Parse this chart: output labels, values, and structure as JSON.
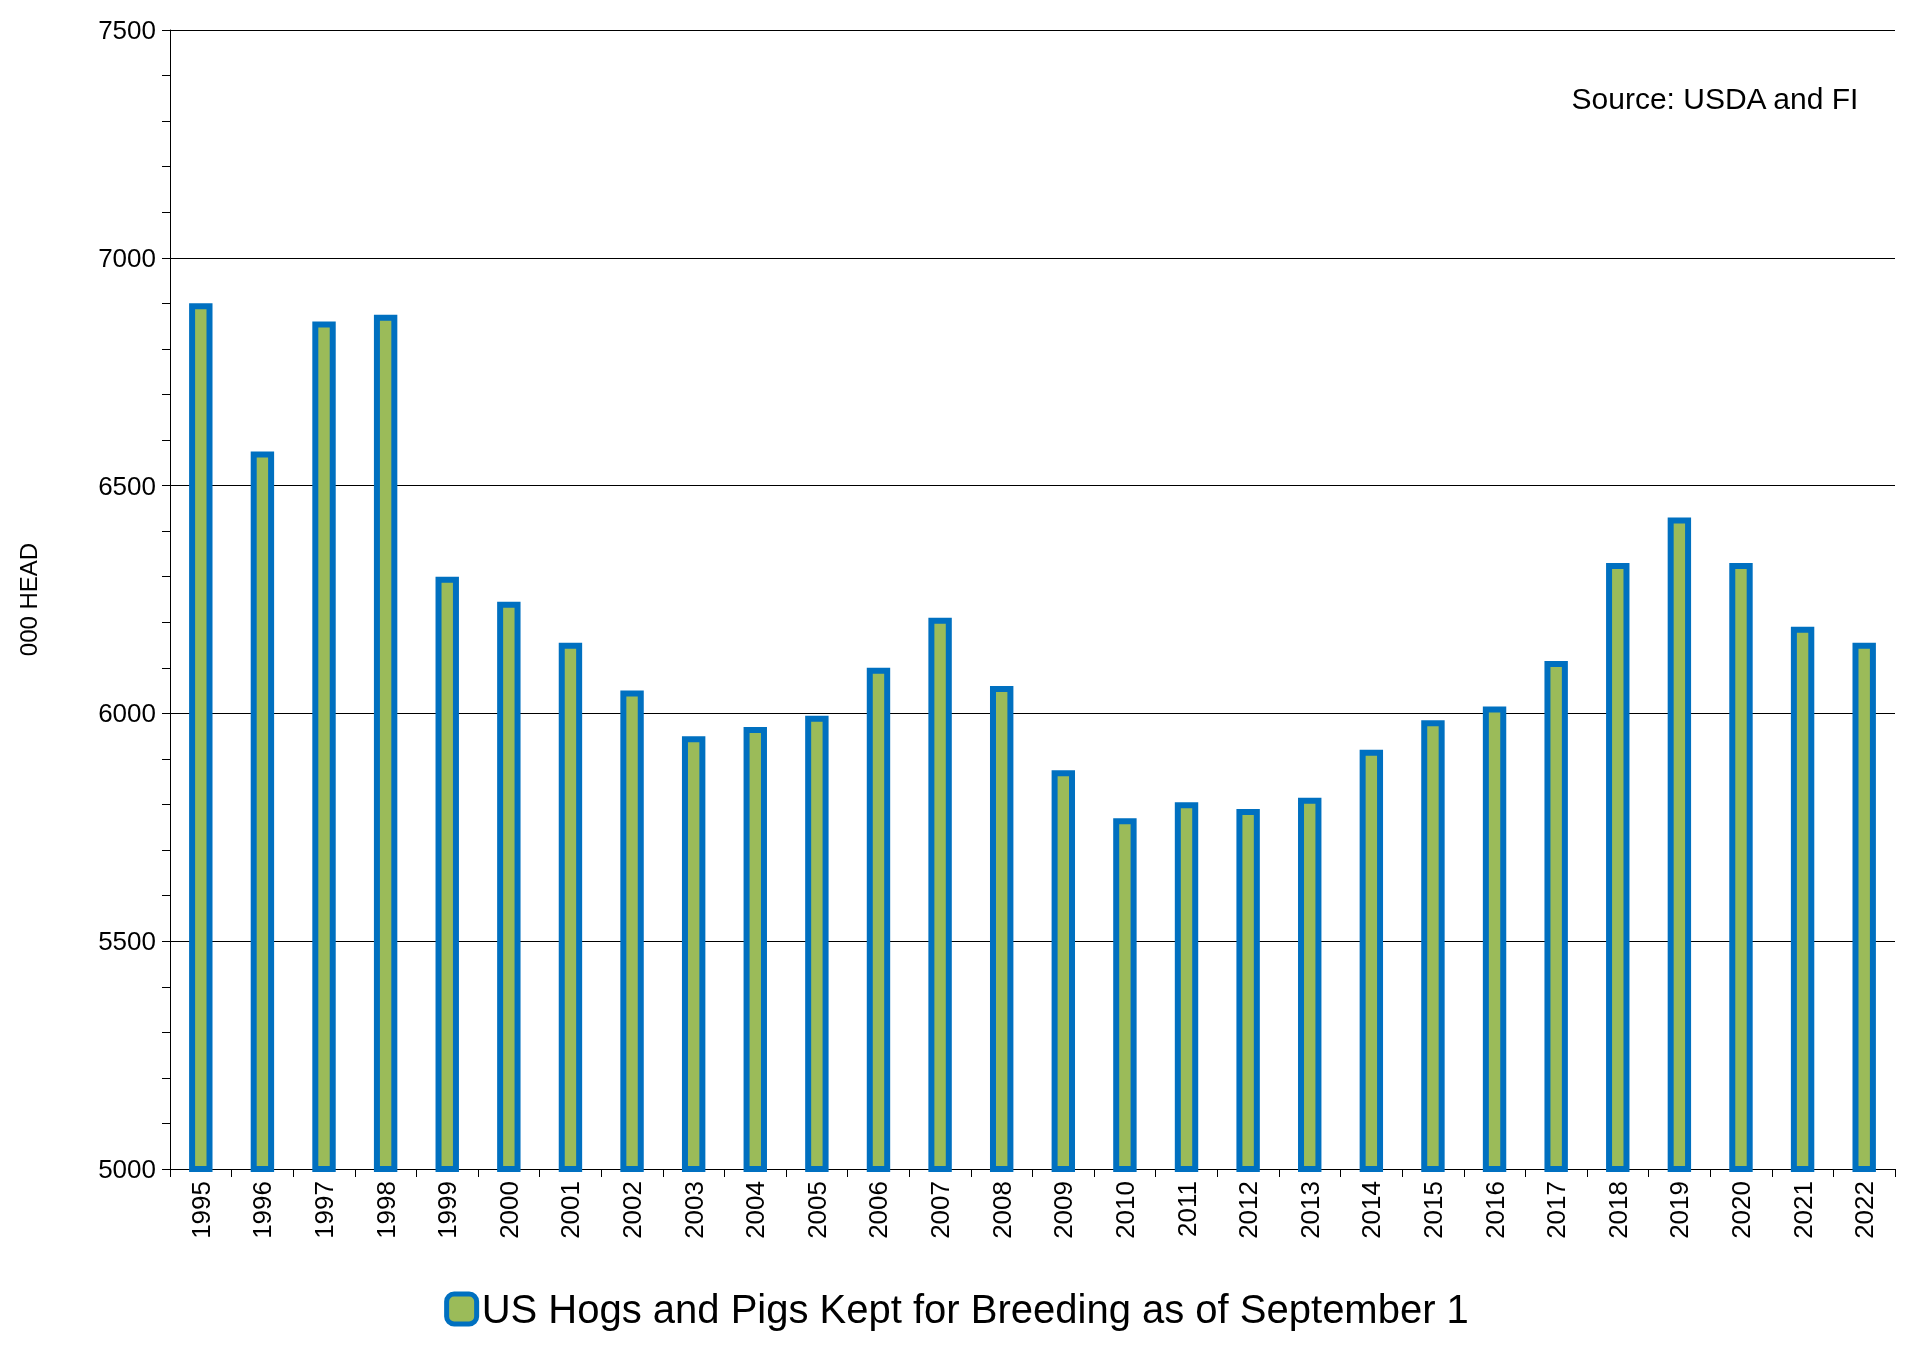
{
  "chart_data": {
    "type": "bar",
    "ylabel": "000 HEAD",
    "annotations": [
      "Source: USDA and FI"
    ],
    "categories": [
      "1995",
      "1996",
      "1997",
      "1998",
      "1999",
      "2000",
      "2001",
      "2002",
      "2003",
      "2004",
      "2005",
      "2006",
      "2007",
      "2008",
      "2009",
      "2010",
      "2011",
      "2012",
      "2013",
      "2014",
      "2015",
      "2016",
      "2017",
      "2018",
      "2019",
      "2020",
      "2021",
      "2022"
    ],
    "series": [
      {
        "name": "US Hogs and Pigs Kept for Breeding as of September 1",
        "color": "#9bbb59",
        "values": [
          6900,
          6575,
          6860,
          6875,
          6300,
          6245,
          6155,
          6050,
          5950,
          5970,
          5995,
          6100,
          6210,
          6060,
          5875,
          5770,
          5805,
          5790,
          5815,
          5920,
          5985,
          6015,
          6115,
          6330,
          6430,
          6330,
          6190,
          6155
        ]
      }
    ],
    "ylim": [
      5000,
      7500
    ],
    "yticks": [
      5000,
      {
        "value": 5100,
        "label": null
      },
      {
        "value": 5200,
        "label": null
      },
      {
        "value": 5300,
        "label": null
      },
      {
        "value": 5400,
        "label": null
      },
      5500,
      {
        "value": 5600,
        "label": null
      },
      {
        "value": 5700,
        "label": null
      },
      {
        "value": 5800,
        "label": null
      },
      {
        "value": 5900,
        "label": null
      },
      6000,
      {
        "value": 6100,
        "label": null
      },
      {
        "value": 6200,
        "label": null
      },
      {
        "value": 6300,
        "label": null
      },
      {
        "value": 6400,
        "label": null
      },
      6500,
      {
        "value": 6600,
        "label": null
      },
      {
        "value": 6700,
        "label": null
      },
      {
        "value": 6800,
        "label": null
      },
      {
        "value": 6900,
        "label": null
      },
      7000,
      {
        "value": 7100,
        "label": null
      },
      {
        "value": 7200,
        "label": null
      },
      {
        "value": 7300,
        "label": null
      },
      {
        "value": 7400,
        "label": null
      },
      7500
    ],
    "grid": "y",
    "legend": "bottom"
  }
}
